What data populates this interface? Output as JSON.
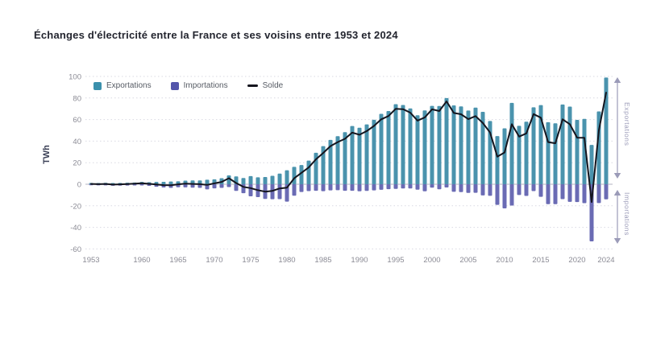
{
  "title": "Échanges d'électricité entre la France et ses voisins entre 1953 et 2024",
  "legend": {
    "items": [
      {
        "label": "Exportations",
        "color": "#3b90ac",
        "swatch": "square"
      },
      {
        "label": "Importations",
        "color": "#5456ab",
        "swatch": "square"
      },
      {
        "label": "Solde",
        "color": "#15151e",
        "swatch": "line"
      }
    ]
  },
  "axis": {
    "y_label": "TWh",
    "y_ticks": [
      100,
      80,
      60,
      40,
      20,
      0,
      -20,
      -40,
      -60
    ],
    "x_ticks": [
      1953,
      1960,
      1965,
      1970,
      1975,
      1980,
      1985,
      1990,
      1995,
      2000,
      2005,
      2010,
      2015,
      2020,
      2024
    ]
  },
  "annotations": {
    "right_top": "Exportations",
    "right_bottom": "Importations",
    "color": "#9b9bb8"
  },
  "colors": {
    "background": "#ffffff",
    "gridline": "#d9d9e2",
    "zero_line": "#b3b3c2",
    "tick_text": "#8b8b95"
  },
  "chart_data": {
    "type": "bar",
    "subtype": "diverging-bars-with-net-line",
    "title": "Échanges d'électricité entre la France et ses voisins entre 1953 et 2024",
    "xlabel": "",
    "ylabel": "TWh",
    "ylim": [
      -60,
      100
    ],
    "grid": true,
    "legend_position": "top-left-inside",
    "categories": [
      1953,
      1954,
      1955,
      1956,
      1957,
      1958,
      1959,
      1960,
      1961,
      1962,
      1963,
      1964,
      1965,
      1966,
      1967,
      1968,
      1969,
      1970,
      1971,
      1972,
      1973,
      1974,
      1975,
      1976,
      1977,
      1978,
      1979,
      1980,
      1981,
      1982,
      1983,
      1984,
      1985,
      1986,
      1987,
      1988,
      1989,
      1990,
      1991,
      1992,
      1993,
      1994,
      1995,
      1996,
      1997,
      1998,
      1999,
      2000,
      2001,
      2002,
      2003,
      2004,
      2005,
      2006,
      2007,
      2008,
      2009,
      2010,
      2011,
      2012,
      2013,
      2014,
      2015,
      2016,
      2017,
      2018,
      2019,
      2020,
      2021,
      2022,
      2023,
      2024
    ],
    "series": [
      {
        "name": "Exportations",
        "render": "bar",
        "color": "#4a93ad",
        "values": [
          1.2,
          1.1,
          1.3,
          1.1,
          1.2,
          1.4,
          1.6,
          2.1,
          1.9,
          2.1,
          2.2,
          2.5,
          2.7,
          3.4,
          3.5,
          3.5,
          4.2,
          4.6,
          5.6,
          8.2,
          7.3,
          5.8,
          7.6,
          6.4,
          6.7,
          7.8,
          9.9,
          13.0,
          16.1,
          17.8,
          21.9,
          29.2,
          35.4,
          41.1,
          44.6,
          48.3,
          54.0,
          52.4,
          55.5,
          59.8,
          65.3,
          67.9,
          74.3,
          73.5,
          70.3,
          64.0,
          68.5,
          72.7,
          72.6,
          79.9,
          73.1,
          72.2,
          68.4,
          71.1,
          67.2,
          58.7,
          44.7,
          51.9,
          75.5,
          54.2,
          58.0,
          71.4,
          73.4,
          57.6,
          56.5,
          74.0,
          72.0,
          59.7,
          60.6,
          36.5,
          67.5,
          99.0
        ]
      },
      {
        "name": "Importations",
        "render": "bar",
        "color": "#6a6bb4",
        "values": [
          -0.9,
          -1.0,
          -1.0,
          -1.4,
          -1.3,
          -1.2,
          -1.1,
          -1.1,
          -1.5,
          -2.3,
          -3.0,
          -3.4,
          -2.8,
          -2.9,
          -3.2,
          -3.4,
          -4.8,
          -3.8,
          -3.4,
          -2.6,
          -6.2,
          -8.3,
          -11.2,
          -11.9,
          -13.6,
          -13.9,
          -13.8,
          -16.1,
          -10.6,
          -7.2,
          -6.3,
          -6.1,
          -6.4,
          -5.7,
          -5.5,
          -6.1,
          -6.1,
          -6.5,
          -6.2,
          -5.7,
          -5.1,
          -4.6,
          -4.3,
          -3.9,
          -3.9,
          -5.0,
          -6.5,
          -3.2,
          -4.7,
          -3.0,
          -7.0,
          -7.3,
          -8.0,
          -7.9,
          -10.4,
          -10.7,
          -19.1,
          -22.4,
          -19.8,
          -10.0,
          -10.8,
          -6.3,
          -11.7,
          -18.5,
          -18.5,
          -13.8,
          -16.3,
          -16.5,
          -17.5,
          -53.0,
          -17.4,
          -14.0
        ]
      },
      {
        "name": "Solde",
        "render": "line",
        "color": "#15151e",
        "values": [
          0.3,
          0.1,
          0.3,
          -0.3,
          -0.1,
          0.2,
          0.5,
          1.0,
          0.4,
          -0.2,
          -0.8,
          -0.9,
          -0.1,
          0.5,
          0.3,
          0.1,
          -0.6,
          0.8,
          2.2,
          5.6,
          1.1,
          -2.5,
          -3.6,
          -5.5,
          -6.9,
          -6.1,
          -3.9,
          -3.1,
          5.5,
          10.6,
          15.6,
          23.1,
          29.0,
          35.4,
          39.1,
          42.2,
          47.9,
          45.9,
          49.3,
          54.1,
          60.2,
          63.3,
          70.0,
          69.6,
          66.4,
          59.0,
          62.0,
          69.5,
          67.9,
          76.9,
          66.1,
          64.9,
          60.4,
          63.2,
          56.8,
          48.0,
          25.6,
          29.5,
          55.7,
          44.2,
          47.2,
          65.1,
          61.7,
          39.1,
          38.0,
          60.2,
          55.7,
          43.2,
          43.1,
          -16.5,
          50.1,
          85.0
        ]
      }
    ]
  }
}
